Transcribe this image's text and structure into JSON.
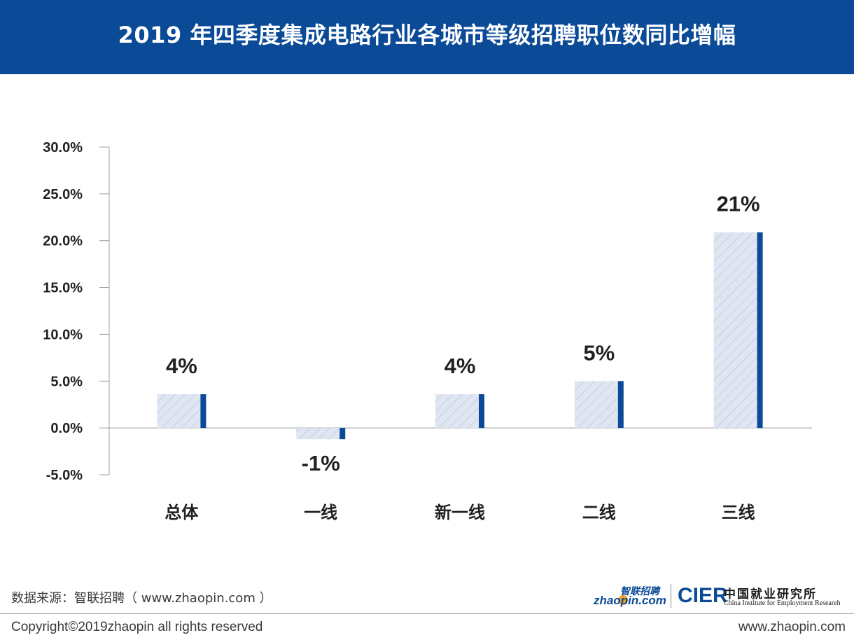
{
  "header": {
    "title": "2019 年四季度集成电路行业各城市等级招聘职位数同比增幅"
  },
  "colors": {
    "header_bg": "#0b4a97",
    "bar_edge": "#0b4a97",
    "bar_fill": "#dfe6f1",
    "hatch": "#b7c6de",
    "axis": "#9c9c9c"
  },
  "chart_data": {
    "type": "bar",
    "title": "2019 年四季度集成电路行业各城市等级招聘职位数同比增幅",
    "categories": [
      "总体",
      "一线",
      "新一线",
      "二线",
      "三线"
    ],
    "values": [
      3.6,
      -1.2,
      3.6,
      5.0,
      20.9
    ],
    "data_labels": [
      "4%",
      "-1%",
      "4%",
      "5%",
      "21%"
    ],
    "yticks": [
      "30.0%",
      "25.0%",
      "20.0%",
      "15.0%",
      "10.0%",
      "5.0%",
      "0.0%",
      "-5.0%"
    ],
    "ylim": [
      -5,
      30
    ],
    "grid": false,
    "legend": "none"
  },
  "footer": {
    "source": "数据来源：智联招聘（ www.zhaopin.com ）",
    "copyright": "Copyright©2019zhaopin all rights reserved",
    "website": "www.zhaopin.com"
  },
  "logos": {
    "zhaopin_cn": "智联招聘",
    "zhaopin_en": "zhaopin.com",
    "cier": "CIER",
    "cier_cn": "中国就业研究所",
    "cier_en": "China Institute for Employment Researeh"
  }
}
